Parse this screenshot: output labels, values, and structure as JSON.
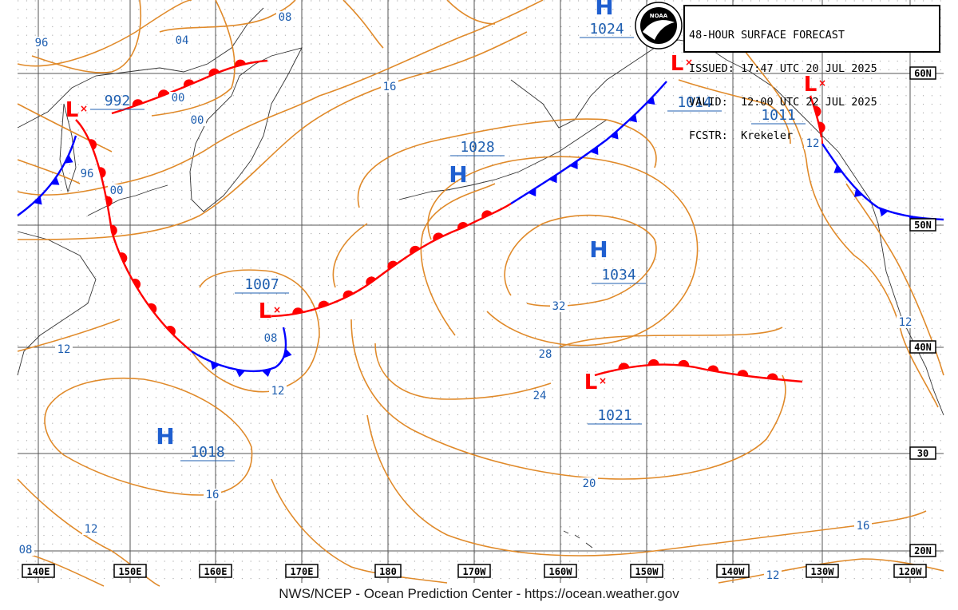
{
  "header": {
    "title": "48-HOUR SURFACE FORECAST",
    "issued_label": "ISSUED:",
    "issued": "17:47 UTC 20 JUL 2025",
    "valid_label": "VALID:",
    "valid": "12:00 UTC 22 JUL 2025",
    "forecaster_label": "FCSTR:",
    "forecaster": "Krekeler"
  },
  "logo_text": "NOAA",
  "footer": "NWS/NCEP - Ocean Prediction Center - https://ocean.weather.gov",
  "longitudes": [
    "140E",
    "150E",
    "160E",
    "170E",
    "180",
    "170W",
    "160W",
    "150W",
    "140W",
    "130W",
    "120W"
  ],
  "latitudes": [
    "60N",
    "50N",
    "40N",
    "30",
    "20N"
  ],
  "pressure_centers": [
    {
      "type": "H",
      "value": "1024"
    },
    {
      "type": "L",
      "value": "992"
    },
    {
      "type": "H",
      "value": "1028"
    },
    {
      "type": "H",
      "value": "1034"
    },
    {
      "type": "L",
      "value": "1014"
    },
    {
      "type": "L",
      "value": "1011"
    },
    {
      "type": "L",
      "value": "1007"
    },
    {
      "type": "L",
      "value": "1021"
    },
    {
      "type": "H",
      "value": "1018"
    }
  ],
  "isobar_labels": [
    "96",
    "08",
    "04",
    "00",
    "00",
    "16",
    "96",
    "00",
    "12",
    "12",
    "08",
    "32",
    "28",
    "24",
    "20",
    "16",
    "12",
    "12",
    "16",
    "12",
    "08",
    "12"
  ],
  "colors": {
    "isobar": "#e08a2a",
    "warm_front": "#ff0000",
    "cold_front": "#0000ff",
    "label_text": "#1f5fb0",
    "grid": "#555555",
    "coast": "#333333",
    "low_symbol": "#ff0000",
    "high_symbol": "#1f5fd0"
  }
}
